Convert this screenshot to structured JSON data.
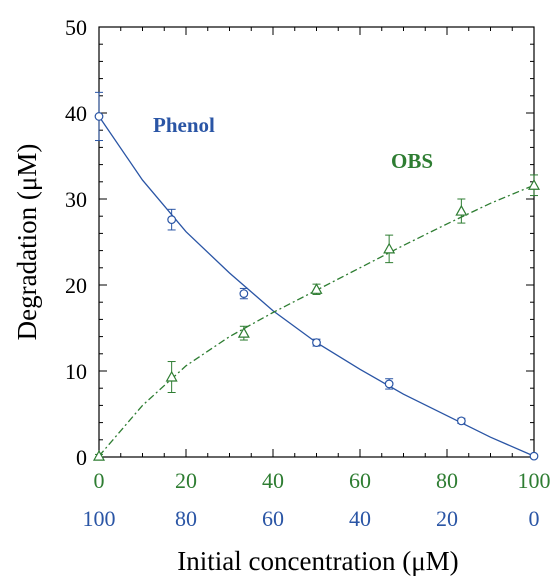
{
  "chart_data": {
    "type": "line",
    "xlabel": "Initial concentration (μM)",
    "ylabel": "Degradation (μM)",
    "ylim": [
      0,
      50
    ],
    "y_ticks": [
      "0",
      "10",
      "20",
      "30",
      "40",
      "50"
    ],
    "x_ticks_top": [
      "0",
      "20",
      "40",
      "60",
      "80",
      "100"
    ],
    "x_ticks_bottom": [
      "100",
      "80",
      "60",
      "40",
      "20",
      "0"
    ],
    "x_ticks_top_color": "#2e7d32",
    "x_ticks_bottom_color": "#2a55a5",
    "grid": false,
    "series": [
      {
        "name": "Phenol",
        "color": "#2a55a5",
        "marker": "circle",
        "line": "solid",
        "x": [
          0,
          16.7,
          33.3,
          50,
          66.7,
          83.3,
          100
        ],
        "y": [
          39.6,
          27.6,
          19.0,
          13.3,
          8.5,
          4.2,
          0.1
        ],
        "error": [
          2.8,
          1.2,
          0.6,
          0.4,
          0.6,
          0.3,
          0.1
        ],
        "fit_x": [
          0,
          10,
          20,
          30,
          40,
          50,
          60,
          70,
          80,
          90,
          100
        ],
        "fit_y": [
          39.6,
          32.2,
          26.2,
          21.4,
          17.0,
          13.3,
          10.2,
          7.3,
          4.8,
          2.3,
          0.1
        ]
      },
      {
        "name": "OBS",
        "color": "#2e7d32",
        "marker": "triangle",
        "line": "dashed",
        "x": [
          0,
          16.7,
          33.3,
          50,
          66.7,
          83.3,
          100
        ],
        "y": [
          0.1,
          9.3,
          14.4,
          19.5,
          24.2,
          28.6,
          31.6
        ],
        "error": [
          0.2,
          1.8,
          0.8,
          0.6,
          1.6,
          1.4,
          1.2
        ],
        "fit_x": [
          0,
          10,
          20,
          30,
          40,
          50,
          60,
          70,
          80,
          90,
          100
        ],
        "fit_y": [
          0.1,
          6.0,
          10.6,
          14.0,
          16.8,
          19.4,
          22.0,
          24.6,
          27.1,
          29.5,
          31.6
        ]
      }
    ]
  }
}
